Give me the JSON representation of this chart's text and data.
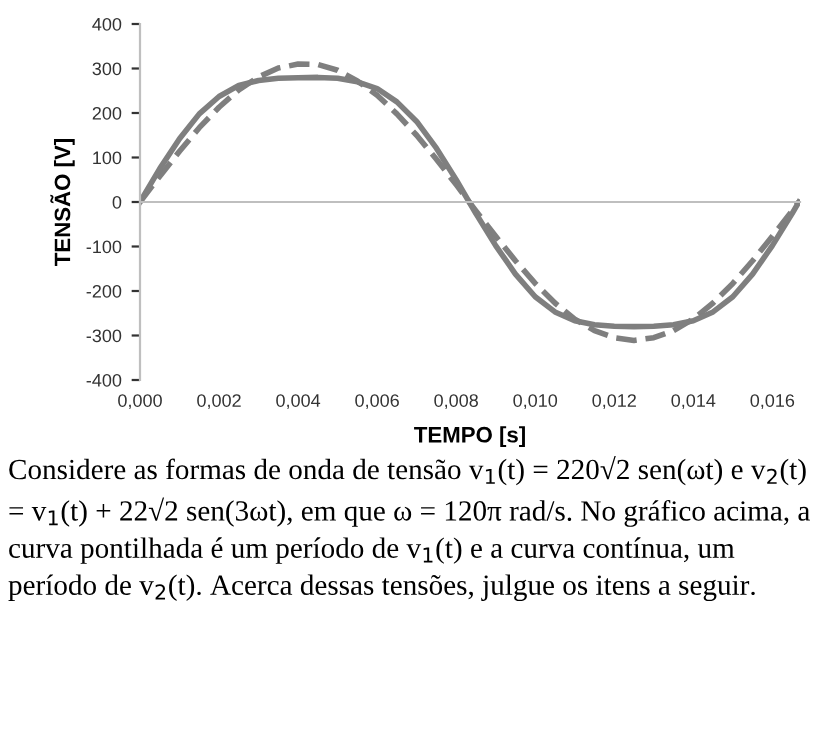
{
  "chart_data": {
    "type": "line",
    "xlabel": "TEMPO [s]",
    "ylabel": "TENSÃO [V]",
    "x": [
      0,
      0.0005,
      0.001,
      0.0015,
      0.002,
      0.0025,
      0.003,
      0.0035,
      0.004,
      0.0045,
      0.005,
      0.0055,
      0.006,
      0.0065,
      0.007,
      0.0075,
      0.008,
      0.0085,
      0.009,
      0.0095,
      0.01,
      0.0105,
      0.011,
      0.0115,
      0.012,
      0.0125,
      0.013,
      0.0135,
      0.014,
      0.0145,
      0.015,
      0.0155,
      0.016,
      0.0165,
      0.01667
    ],
    "series": [
      {
        "color": "#7f7f7f",
        "line_style": "dashed",
        "values": [
          0,
          58,
          114,
          167,
          213,
          252,
          281,
          301,
          310,
          309,
          296,
          272,
          240,
          198,
          150,
          96,
          39,
          -20,
          -77,
          -132,
          -183,
          -227,
          -263,
          -289,
          -305,
          -311,
          -305,
          -289,
          -263,
          -227,
          -183,
          -132,
          -77,
          -20,
          0
        ]
      },
      {
        "color": "#7f7f7f",
        "line_style": "solid",
        "values": [
          0,
          75,
          142,
          198,
          237,
          262,
          273,
          278,
          279,
          280,
          278,
          270,
          255,
          225,
          181,
          121,
          50,
          -26,
          -98,
          -162,
          -213,
          -247,
          -267,
          -276,
          -279,
          -280,
          -279,
          -276,
          -267,
          -247,
          -213,
          -162,
          -98,
          -26,
          0
        ]
      }
    ],
    "xlim": [
      0,
      0.0167
    ],
    "xticks": [
      {
        "value": 0,
        "label": "0,000"
      },
      {
        "value": 0.002,
        "label": "0,002"
      },
      {
        "value": 0.004,
        "label": "0,004"
      },
      {
        "value": 0.006,
        "label": "0,006"
      },
      {
        "value": 0.008,
        "label": "0,008"
      },
      {
        "value": 0.01,
        "label": "0,010"
      },
      {
        "value": 0.012,
        "label": "0,012"
      },
      {
        "value": 0.014,
        "label": "0,014"
      },
      {
        "value": 0.016,
        "label": "0,016"
      }
    ],
    "ylim": [
      -400,
      400
    ],
    "yticks": [
      -400,
      -300,
      -200,
      -100,
      0,
      100,
      200,
      300,
      400
    ],
    "legend": false,
    "marker": "none",
    "annotations": [
      "Considere as formas de onda de tensão v$_{1}$(t) = 220√2 sen(ωt) e v$_{2}$(t) = v$_{1}$(t) + 22√2 sen(3ωt), em que ω = 120π rad/s. No gráfico acima, a curva pontilhada é um período de v$_{1}$(t) e a curva contínua, um período de v$_{2}$(t). Acerca dessas tensões, julgue os itens a seguir."
    ]
  }
}
